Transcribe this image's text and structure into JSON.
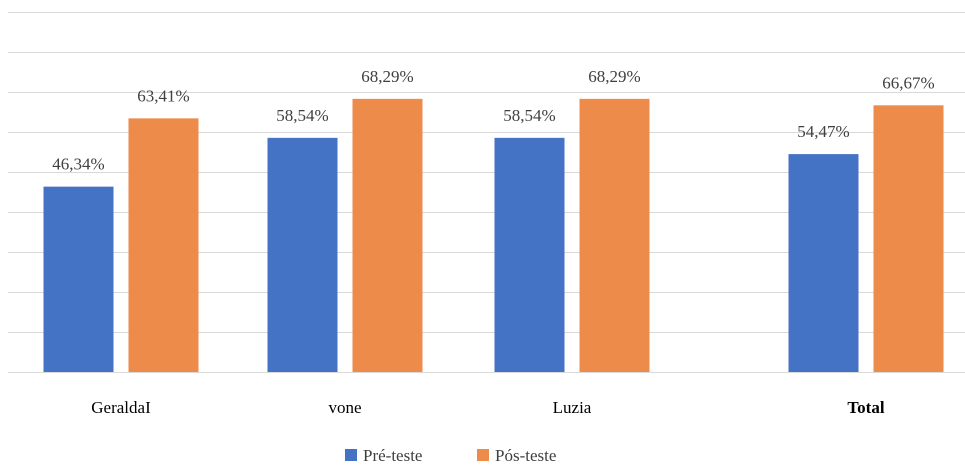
{
  "chart_data": {
    "type": "bar",
    "categories": [
      "GeraldaI",
      "vone",
      "Luzia",
      "Total"
    ],
    "category_bold": [
      false,
      false,
      false,
      true
    ],
    "series": [
      {
        "name": "Pré-teste",
        "color": "#4472c4",
        "values": [
          46.34,
          58.54,
          58.54,
          54.47
        ],
        "labels": [
          "46,34%",
          "58,54%",
          "58,54%",
          "54,47%"
        ]
      },
      {
        "name": "Pós-teste",
        "color": "#ed8b4b",
        "values": [
          63.41,
          68.29,
          68.29,
          66.67
        ],
        "labels": [
          "63,41%",
          "68,29%",
          "68,29%",
          "66,67%"
        ]
      }
    ],
    "ylim": [
      0,
      90
    ],
    "grid": true,
    "y_tick_labels_visible": false,
    "legend_position": "bottom",
    "title": "",
    "xlabel": "",
    "ylabel": ""
  }
}
